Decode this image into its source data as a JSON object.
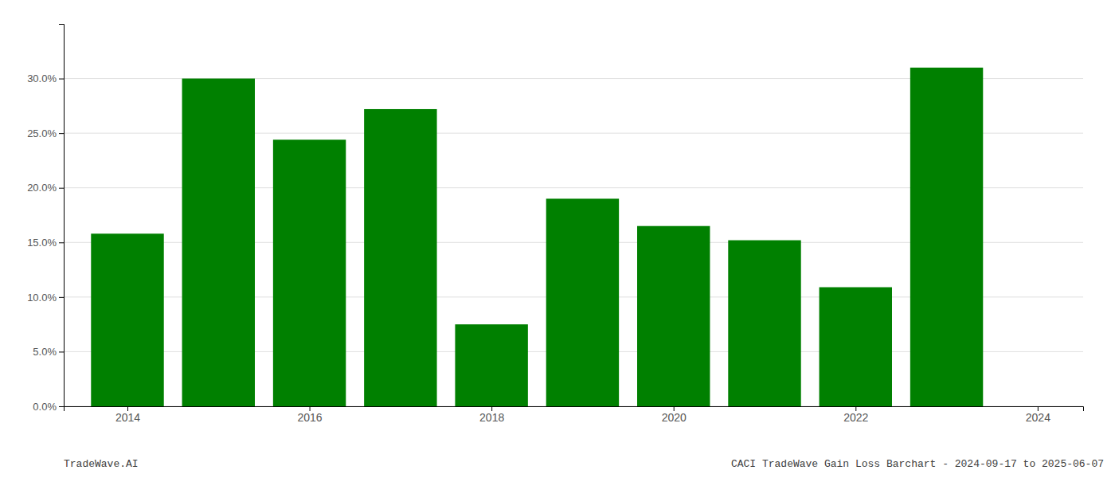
{
  "chart_data": {
    "type": "bar",
    "title": "CACI TradeWave Gain Loss Barchart - 2024-09-17 to 2025-06-07",
    "annotations": [
      "TradeWave.AI"
    ],
    "x": [
      2014,
      2015,
      2016,
      2017,
      2018,
      2019,
      2020,
      2021,
      2022,
      2023
    ],
    "values": [
      0.158,
      0.3,
      0.244,
      0.272,
      0.075,
      0.19,
      0.165,
      0.152,
      0.109,
      0.31
    ],
    "color": "#008000",
    "xlim": [
      2013.3,
      2024.5
    ],
    "xticks": [
      2014,
      2016,
      2018,
      2020,
      2022,
      2024
    ],
    "ylim": [
      0,
      0.35
    ],
    "yticks": [
      {
        "value": 0.0,
        "label": "0.0%"
      },
      {
        "value": 0.05,
        "label": "5.0%"
      },
      {
        "value": 0.1,
        "label": "10.0%"
      },
      {
        "value": 0.15,
        "label": "15.0%"
      },
      {
        "value": 0.2,
        "label": "20.0%"
      },
      {
        "value": 0.25,
        "label": "25.0%"
      },
      {
        "value": 0.3,
        "label": "30.0%"
      }
    ],
    "grid": true
  }
}
